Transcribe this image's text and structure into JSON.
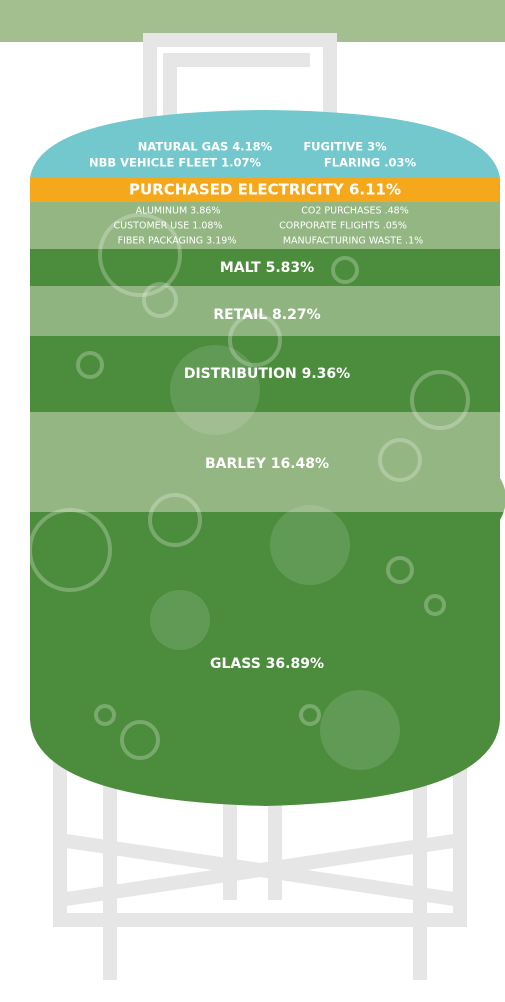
{
  "layers": [
    {
      "labels": [
        "NATURAL GAS 4.18%",
        "FUGITIVE 3%",
        "NBB VEHICLE FLEET 1.07%",
        "FLARING .03%"
      ]
    },
    {
      "labels": [
        "PURCHASED ELECTRICITY 6.11%"
      ]
    },
    {
      "labels": [
        "ALUMINUM 3.86%",
        "CO2 PURCHASES .48%",
        "CUSTOMER USE 1.08%",
        "CORPORATE FLIGHTS .05%",
        "FIBER PACKAGING 3.19%",
        "MANUFACTURING WASTE .1%"
      ]
    },
    {
      "labels": [
        "MALT 5.83%"
      ]
    },
    {
      "labels": [
        "RETAIL 8.27%"
      ]
    },
    {
      "labels": [
        "DISTRIBUTION 9.36%"
      ]
    },
    {
      "labels": [
        "BARLEY 16.48%"
      ]
    },
    {
      "labels": [
        "GLASS 36.89%"
      ]
    }
  ]
}
